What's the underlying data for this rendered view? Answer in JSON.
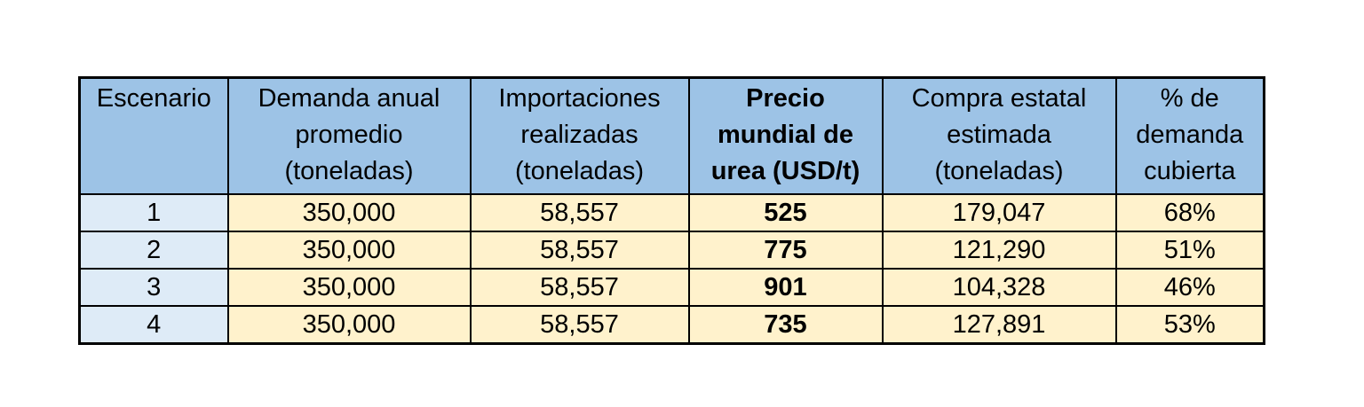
{
  "table": {
    "colors": {
      "header_bg": "#9DC3E6",
      "scenario_column_bg": "#DEEBF7",
      "data_cell_bg": "#FFF2CC",
      "border": "#000000",
      "text": "#000000"
    },
    "columns": [
      {
        "id": "escenario",
        "label": "Escenario",
        "bold": false
      },
      {
        "id": "demanda",
        "label": "Demanda anual\npromedio\n(toneladas)",
        "bold": false
      },
      {
        "id": "importaciones",
        "label": "Importaciones\nrealizadas\n(toneladas)",
        "bold": false
      },
      {
        "id": "precio",
        "label": "Precio\nmundial de\nurea (USD/t)",
        "bold": true
      },
      {
        "id": "compra",
        "label": "Compra estatal\nestimada\n(toneladas)",
        "bold": false
      },
      {
        "id": "pct",
        "label": "% de\ndemanda\ncubierta",
        "bold": false
      }
    ],
    "rows": [
      {
        "cells": [
          "1",
          "350,000",
          "58,557",
          "525",
          "179,047",
          "68%"
        ]
      },
      {
        "cells": [
          "2",
          "350,000",
          "58,557",
          "775",
          "121,290",
          "51%"
        ]
      },
      {
        "cells": [
          "3",
          "350,000",
          "58,557",
          "901",
          "104,328",
          "46%"
        ]
      },
      {
        "cells": [
          "4",
          "350,000",
          "58,557",
          "735",
          "127,891",
          "53%"
        ]
      }
    ]
  },
  "chart_data": {
    "type": "table",
    "title": "",
    "columns": [
      "Escenario",
      "Demanda anual promedio (toneladas)",
      "Importaciones realizadas (toneladas)",
      "Precio mundial de urea (USD/t)",
      "Compra estatal estimada (toneladas)",
      "% de demanda cubierta"
    ],
    "rows": [
      [
        1,
        350000,
        58557,
        525,
        179047,
        "68%"
      ],
      [
        2,
        350000,
        58557,
        775,
        121290,
        "51%"
      ],
      [
        3,
        350000,
        58557,
        901,
        104328,
        "46%"
      ],
      [
        4,
        350000,
        58557,
        735,
        127891,
        "53%"
      ]
    ]
  }
}
